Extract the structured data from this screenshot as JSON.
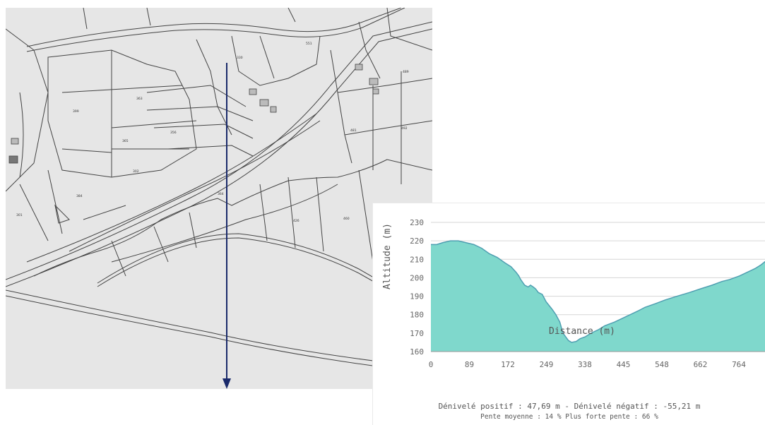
{
  "map": {
    "parcel_numbers": [
      "330",
      "551",
      "363",
      "365",
      "356",
      "399",
      "302",
      "481",
      "492",
      "384",
      "301",
      "364",
      "426",
      "460",
      "489"
    ]
  },
  "chart_data": {
    "type": "area",
    "title": "",
    "xlabel": "Distance (m)",
    "ylabel": "Altitude (m)",
    "x_tick_labels": [
      "0",
      "89",
      "172",
      "249",
      "338",
      "445",
      "548",
      "662",
      "764"
    ],
    "y_ticks": [
      160,
      170,
      180,
      190,
      200,
      210,
      220,
      230
    ],
    "ylim": [
      160,
      230
    ],
    "xlim": [
      0,
      857
    ],
    "fill_color": "#7fd8cc",
    "line_color": "#4f9fb1",
    "grid": true,
    "x": [
      0,
      15,
      30,
      50,
      70,
      90,
      110,
      130,
      150,
      170,
      190,
      205,
      218,
      225,
      230,
      240,
      249,
      255,
      262,
      268,
      275,
      285,
      295,
      310,
      320,
      330,
      338,
      345,
      352,
      360,
      372,
      382,
      395,
      410,
      430,
      445,
      470,
      500,
      530,
      548,
      575,
      600,
      630,
      662,
      690,
      720,
      745,
      764,
      790,
      810,
      830,
      845,
      857
    ],
    "y": [
      218,
      218,
      219,
      220,
      220,
      219,
      218,
      216,
      213,
      211,
      208,
      206,
      203,
      201,
      199,
      196,
      195,
      196,
      195,
      194,
      192,
      191,
      187,
      183,
      180,
      176,
      170,
      168,
      166,
      165,
      165.5,
      167,
      168,
      170,
      172,
      174,
      176,
      179,
      182,
      184,
      186,
      188,
      190,
      192,
      194,
      196,
      198,
      199,
      201,
      203,
      205,
      207,
      209
    ]
  },
  "stats": {
    "line1": "Dénivelé positif : 47,69 m - Dénivelé négatif : -55,21 m",
    "line2": "Pente moyenne : 14 %   Plus forte pente : 66 %"
  },
  "colors": {
    "map_background": "#e6e6e6",
    "parcel_line": "#4a4a4a",
    "profile_arrow": "#1a2a6b"
  }
}
